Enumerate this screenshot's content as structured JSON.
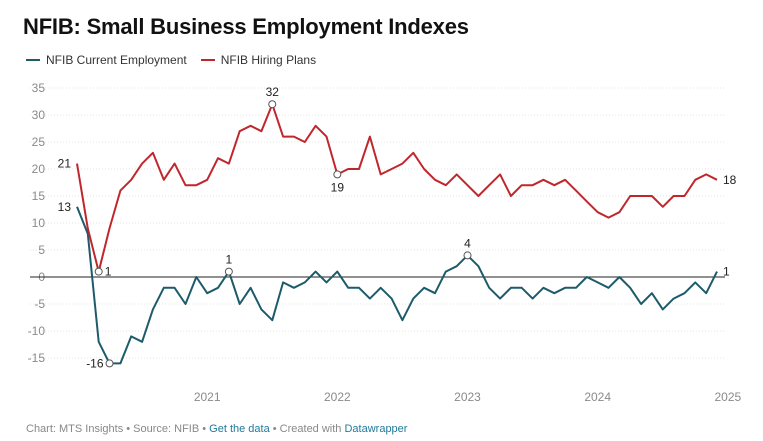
{
  "chart_data": {
    "type": "line",
    "title": "NFIB: Small Business Employment Indexes",
    "xlabel": "",
    "ylabel": "",
    "ylim": [
      -15,
      35
    ],
    "yticks": [
      35,
      30,
      25,
      20,
      15,
      10,
      5,
      0,
      -5,
      -10,
      -15
    ],
    "xticks": [
      "2021",
      "2022",
      "2023",
      "2024",
      "2025"
    ],
    "xtick_values": [
      2021,
      2022,
      2023,
      2024,
      2025
    ],
    "x_start": 2020.0,
    "x_step": 0.0833333,
    "colors": {
      "employment": "#1d5b6b",
      "hiring": "#c0272d",
      "zero_line": "#222222",
      "grid": "#e5e5e5"
    },
    "series": [
      {
        "name": "NFIB Current Employment",
        "key": "employment",
        "values": [
          13,
          8,
          -12,
          -16,
          -16,
          -11,
          -12,
          -6,
          -2,
          -2,
          -5,
          0,
          -3,
          -2,
          1,
          -5,
          -2,
          -6,
          -8,
          -1,
          -2,
          -1,
          1,
          -1,
          1,
          -2,
          -2,
          -4,
          -2,
          -4,
          -8,
          -4,
          -2,
          -3,
          1,
          2,
          4,
          2,
          -2,
          -4,
          -2,
          -2,
          -4,
          -2,
          -3,
          -2,
          -2,
          0,
          -1,
          -2,
          0,
          -2,
          -5,
          -3,
          -6,
          -4,
          -3,
          -1,
          -3,
          1
        ]
      },
      {
        "name": "NFIB Hiring Plans",
        "key": "hiring",
        "values": [
          21,
          9,
          1,
          9,
          16,
          18,
          21,
          23,
          18,
          21,
          17,
          17,
          18,
          22,
          21,
          27,
          28,
          27,
          32,
          26,
          26,
          25,
          28,
          26,
          19,
          20,
          20,
          26,
          19,
          20,
          21,
          23,
          20,
          18,
          17,
          19,
          17,
          15,
          17,
          19,
          15,
          17,
          17,
          18,
          17,
          18,
          16,
          14,
          12,
          11,
          12,
          15,
          15,
          15,
          13,
          15,
          15,
          18,
          19,
          18
        ]
      }
    ],
    "annotations": [
      {
        "series": "employment",
        "index": 0,
        "label": "13",
        "pos": "left"
      },
      {
        "series": "employment",
        "index": 3,
        "label": "-16",
        "pos": "left",
        "marker": true
      },
      {
        "series": "employment",
        "index": 14,
        "label": "1",
        "pos": "above",
        "marker": true
      },
      {
        "series": "employment",
        "index": 36,
        "label": "4",
        "pos": "above",
        "marker": true
      },
      {
        "series": "employment",
        "index": 59,
        "label": "1",
        "pos": "right"
      },
      {
        "series": "hiring",
        "index": 0,
        "label": "21",
        "pos": "left"
      },
      {
        "series": "hiring",
        "index": 2,
        "label": "1",
        "pos": "right",
        "marker": true
      },
      {
        "series": "hiring",
        "index": 18,
        "label": "32",
        "pos": "above",
        "marker": true
      },
      {
        "series": "hiring",
        "index": 24,
        "label": "19",
        "pos": "below",
        "marker": true
      },
      {
        "series": "hiring",
        "index": 59,
        "label": "18",
        "pos": "right"
      }
    ]
  },
  "legend": {
    "employment": "NFIB Current Employment",
    "hiring": "NFIB Hiring Plans"
  },
  "footer": {
    "prefix": "Chart: MTS Insights • Source: NFIB • ",
    "link1": "Get the data",
    "middle": " • Created with ",
    "link2": "Datawrapper"
  }
}
